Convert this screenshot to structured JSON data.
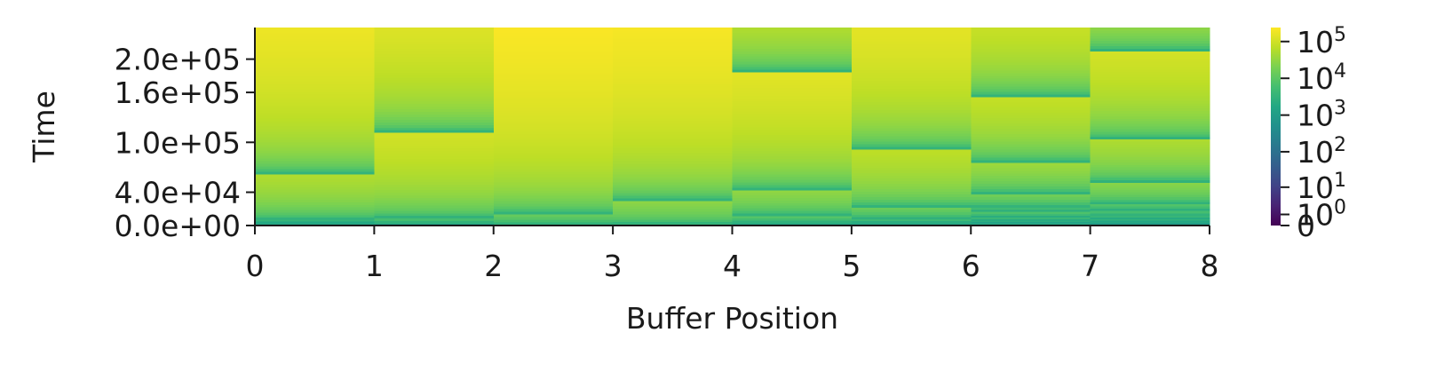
{
  "chart_data": {
    "type": "heatmap",
    "xlabel": "Buffer Position",
    "ylabel": "Time",
    "x_ticks": [
      "0",
      "1",
      "2",
      "3",
      "4",
      "5",
      "6",
      "7",
      "8"
    ],
    "y_ticks": [
      "0.0e+00",
      "4.0e+04",
      "1.0e+05",
      "1.6e+05",
      "2.0e+05"
    ],
    "x_range": [
      0,
      8
    ],
    "time_range": [
      0,
      238000
    ],
    "colormap": "viridis",
    "color_scale": "symlog",
    "colorbar": {
      "ticks": [
        {
          "base": "0",
          "exp": ""
        },
        {
          "base": "10",
          "exp": "0"
        },
        {
          "base": "10",
          "exp": "1"
        },
        {
          "base": "10",
          "exp": "2"
        },
        {
          "base": "10",
          "exp": "3"
        },
        {
          "base": "10",
          "exp": "4"
        },
        {
          "base": "10",
          "exp": "5"
        }
      ],
      "vmax": 240000
    },
    "columns": [
      {
        "position": 0,
        "reset_times": [
          1500,
          3500,
          7000,
          62000
        ]
      },
      {
        "position": 1,
        "reset_times": [
          1200,
          3000,
          9000,
          112000
        ]
      },
      {
        "position": 2,
        "reset_times": [
          1500,
          14000,
          238000
        ]
      },
      {
        "position": 3,
        "reset_times": [
          1500,
          30000
        ]
      },
      {
        "position": 4,
        "reset_times": [
          1500,
          3500,
          12000,
          43000,
          185000
        ]
      },
      {
        "position": 5,
        "reset_times": [
          1500,
          3500,
          8000,
          22000,
          92000
        ]
      },
      {
        "position": 6,
        "reset_times": [
          1500,
          3500,
          6000,
          10000,
          17000,
          22000,
          38000,
          76000,
          155000
        ]
      },
      {
        "position": 7,
        "reset_times": [
          1500,
          3000,
          5000,
          8000,
          12000,
          18000,
          26000,
          52000,
          104000,
          210000
        ]
      }
    ]
  }
}
